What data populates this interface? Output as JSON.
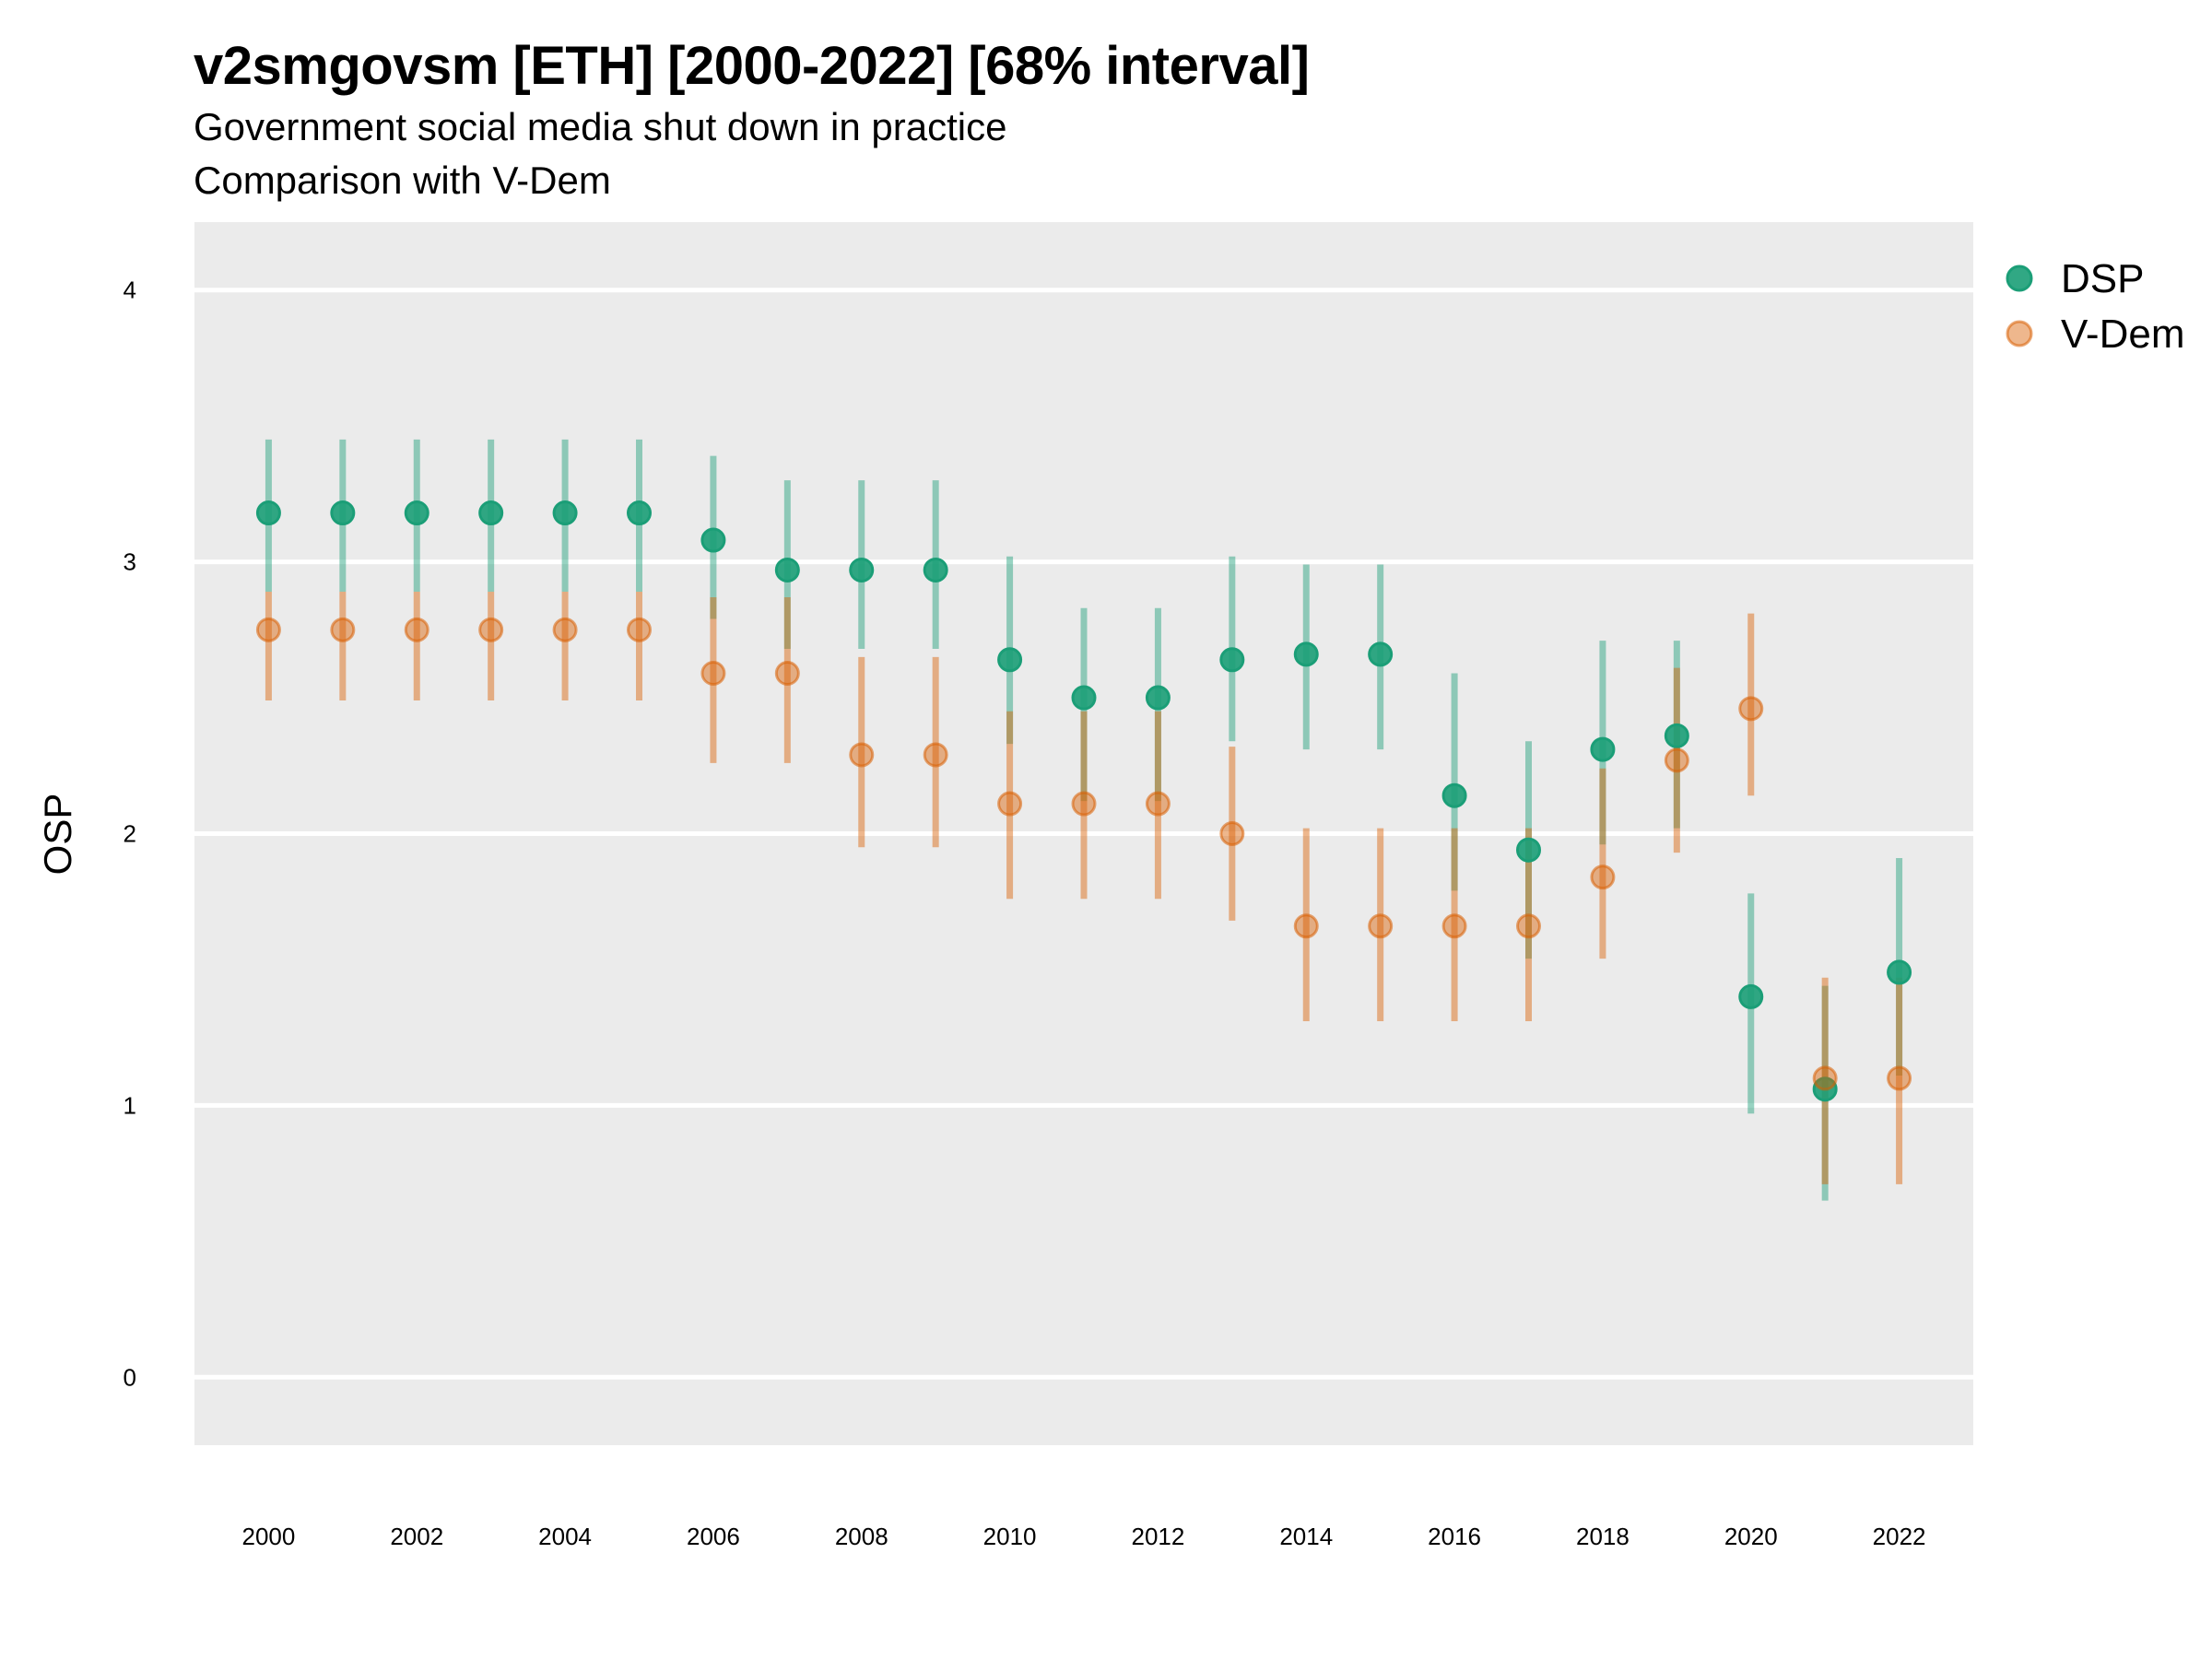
{
  "chart_data": {
    "type": "scatter",
    "title": "v2smgovsm [ETH] [2000-2022] [68% interval]",
    "subtitle": "Government social media shut down in practice",
    "caption": "Comparison with V-Dem",
    "xlabel": "",
    "ylabel": "OSP",
    "ylim": [
      -0.25,
      4.25
    ],
    "yticks": [
      0,
      1,
      2,
      3,
      4
    ],
    "xticks": [
      2000,
      2002,
      2004,
      2006,
      2008,
      2010,
      2012,
      2014,
      2016,
      2018,
      2020,
      2022
    ],
    "xlim": [
      1999.0,
      2023.0
    ],
    "grid": true,
    "legend_position": "right",
    "x": [
      2000,
      2001,
      2002,
      2003,
      2004,
      2005,
      2006,
      2007,
      2008,
      2009,
      2010,
      2011,
      2012,
      2013,
      2014,
      2015,
      2016,
      2017,
      2018,
      2019,
      2020,
      2021,
      2022
    ],
    "series": [
      {
        "name": "DSP",
        "color": "#1b9e77",
        "values": [
          3.18,
          3.18,
          3.18,
          3.18,
          3.18,
          3.18,
          3.08,
          2.97,
          2.97,
          2.97,
          2.64,
          2.5,
          2.5,
          2.64,
          2.66,
          2.66,
          2.14,
          1.94,
          2.31,
          2.36,
          1.4,
          1.06,
          1.49
        ],
        "lower": [
          2.89,
          2.89,
          2.89,
          2.89,
          2.89,
          2.89,
          2.79,
          2.68,
          2.68,
          2.68,
          2.33,
          2.12,
          2.12,
          2.34,
          2.31,
          2.31,
          1.79,
          1.54,
          1.96,
          2.02,
          0.97,
          0.65,
          1.11
        ],
        "upper": [
          3.45,
          3.45,
          3.45,
          3.45,
          3.45,
          3.45,
          3.39,
          3.3,
          3.3,
          3.3,
          3.02,
          2.83,
          2.83,
          3.02,
          2.99,
          2.99,
          2.59,
          2.34,
          2.71,
          2.71,
          1.78,
          1.44,
          1.91
        ]
      },
      {
        "name": "V-Dem",
        "color": "#d95f02",
        "values": [
          2.75,
          2.75,
          2.75,
          2.75,
          2.75,
          2.75,
          2.59,
          2.59,
          2.29,
          2.29,
          2.11,
          2.11,
          2.11,
          2.0,
          1.66,
          1.66,
          1.66,
          1.66,
          1.84,
          2.27,
          2.46,
          1.1,
          1.1
        ],
        "lower": [
          2.49,
          2.49,
          2.49,
          2.49,
          2.49,
          2.49,
          2.26,
          2.26,
          1.95,
          1.95,
          1.76,
          1.76,
          1.76,
          1.68,
          1.31,
          1.31,
          1.31,
          1.31,
          1.54,
          1.93,
          2.14,
          0.71,
          0.71
        ],
        "upper": [
          2.89,
          2.89,
          2.89,
          2.89,
          2.89,
          2.89,
          2.87,
          2.87,
          2.65,
          2.65,
          2.45,
          2.45,
          2.45,
          2.32,
          2.02,
          2.02,
          2.02,
          2.02,
          2.24,
          2.61,
          2.81,
          1.47,
          1.47
        ]
      }
    ]
  }
}
